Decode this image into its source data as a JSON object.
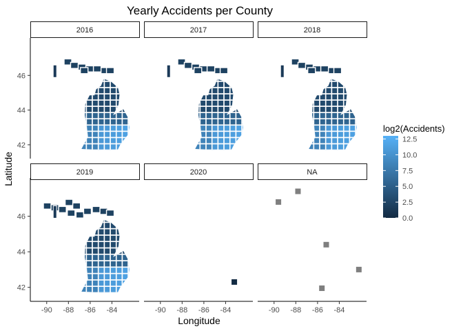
{
  "chart_data": {
    "type": "choropleth-facet",
    "title": "Yearly Accidents per County",
    "xlabel": "Longitude",
    "ylabel": "Latitude",
    "x_ticks": [
      -90,
      -88,
      -86,
      -84
    ],
    "y_ticks": [
      42,
      44,
      46
    ],
    "xlim": [
      -91.0,
      -82.0
    ],
    "ylim": [
      41.6,
      48.0
    ],
    "facets": [
      {
        "label": "2016",
        "has_data": true,
        "upper_peninsula": "partial"
      },
      {
        "label": "2017",
        "has_data": true,
        "upper_peninsula": "partial"
      },
      {
        "label": "2018",
        "has_data": true,
        "upper_peninsula": "partial"
      },
      {
        "label": "2019",
        "has_data": true,
        "upper_peninsula": "full"
      },
      {
        "label": "2020",
        "has_data": false,
        "points": [
          [
            -83.2,
            42.3
          ]
        ]
      },
      {
        "label": "NA",
        "has_data": false,
        "points": [
          [
            -89.6,
            46.8
          ],
          [
            -85.2,
            44.4
          ],
          [
            -82.2,
            43.0
          ],
          [
            -85.6,
            41.95
          ],
          [
            -87.8,
            47.4
          ]
        ]
      }
    ],
    "legend": {
      "title": "log2(Accidents)",
      "ticks": [
        "12.5",
        "10.0",
        "7.5",
        "5.0",
        "2.5",
        "0.0"
      ],
      "range": [
        0.0,
        13.0
      ],
      "color_low": "#132B43",
      "color_high": "#56B1F7",
      "na_color": "#7f7f7f",
      "position": "right"
    }
  }
}
